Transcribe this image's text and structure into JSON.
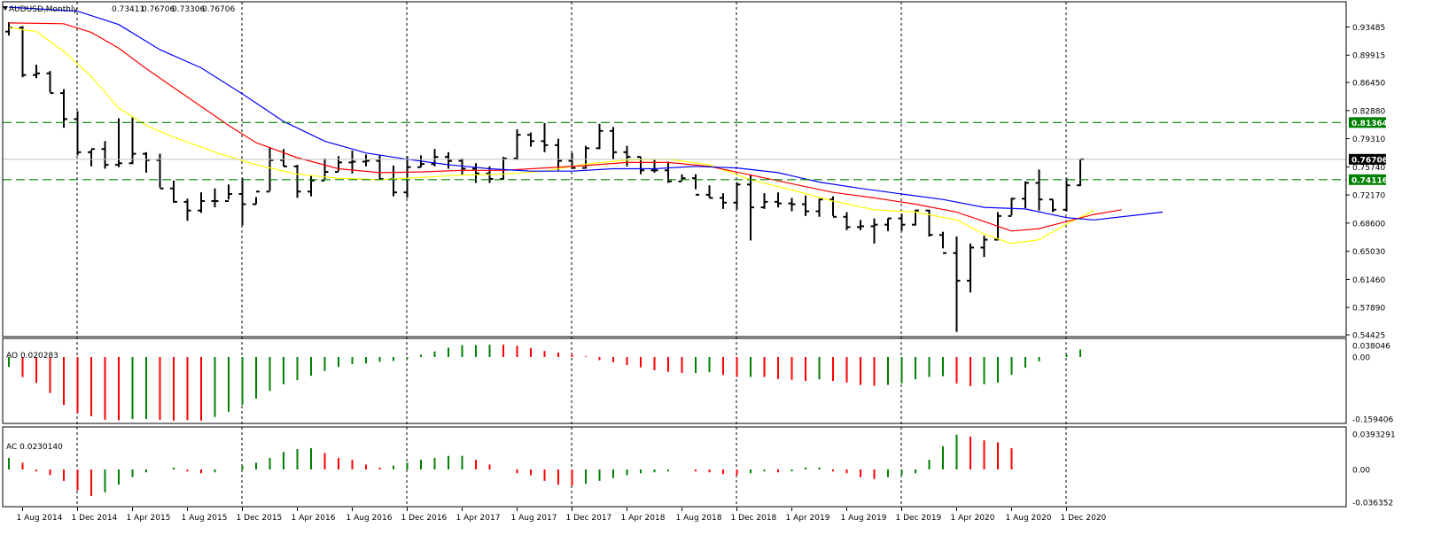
{
  "main_panel": {
    "title": "AUDUSD,Monthly",
    "ohlc": [
      "0.73411",
      "0.76706",
      "0.73306",
      "0.76706"
    ],
    "y_ticks": [
      "0.93485",
      "0.89915",
      "0.86450",
      "0.82880",
      "0.79310",
      "0.75740",
      "0.72170",
      "0.68600",
      "0.65030",
      "0.61460",
      "0.57890",
      "0.54425"
    ],
    "price_tag": "0.76706",
    "hline_tags": [
      "0.81364",
      "0.74116"
    ]
  },
  "ao_panel": {
    "label": "AO 0.020283",
    "ticks": [
      "0.038046",
      "0.00",
      "-0.159406"
    ]
  },
  "ac_panel": {
    "label": "AC 0.0230140",
    "ticks": [
      "0.0393291",
      "0.00",
      "-0.036352"
    ]
  },
  "x_labels": [
    "1 Aug 2014",
    "1 Dec 2014",
    "1 Apr 2015",
    "1 Aug 2015",
    "1 Dec 2015",
    "1 Apr 2016",
    "1 Aug 2016",
    "1 Dec 2016",
    "1 Apr 2017",
    "1 Aug 2017",
    "1 Dec 2017",
    "1 Apr 2018",
    "1 Aug 2018",
    "1 Dec 2018",
    "1 Apr 2019",
    "1 Aug 2019",
    "1 Dec 2019",
    "1 Apr 2020",
    "1 Aug 2020",
    "1 Dec 2020"
  ],
  "colors": {
    "bar": "#000000",
    "ma_yellow": "#ffff00",
    "ma_red": "#ff0000",
    "ma_blue": "#0000ff",
    "hline": "#008000",
    "ind_up": "#008000",
    "ind_down": "#ff0000",
    "grid": "#000000"
  },
  "chart_data": [
    {
      "type": "ohlc",
      "symbol": "AUDUSD",
      "timeframe": "Monthly",
      "ylim": [
        0.54425,
        0.95
      ],
      "horizontal_lines": [
        0.81364,
        0.74116
      ],
      "x_start": "2014-07",
      "bars": [
        [
          0.929,
          0.941,
          0.924,
          0.934
        ],
        [
          0.934,
          0.936,
          0.871,
          0.874
        ],
        [
          0.874,
          0.887,
          0.87,
          0.876
        ],
        [
          0.876,
          0.879,
          0.852,
          0.851
        ],
        [
          0.851,
          0.856,
          0.807,
          0.818
        ],
        [
          0.818,
          0.828,
          0.772,
          0.776
        ],
        [
          0.776,
          0.779,
          0.758,
          0.78
        ],
        [
          0.78,
          0.79,
          0.755,
          0.76
        ],
        [
          0.76,
          0.819,
          0.757,
          0.762
        ],
        [
          0.762,
          0.82,
          0.761,
          0.774
        ],
        [
          0.774,
          0.776,
          0.75,
          0.766
        ],
        [
          0.766,
          0.774,
          0.731,
          0.73
        ],
        [
          0.73,
          0.74,
          0.712,
          0.713
        ],
        [
          0.713,
          0.717,
          0.689,
          0.702
        ],
        [
          0.702,
          0.725,
          0.699,
          0.714
        ],
        [
          0.714,
          0.73,
          0.706,
          0.714
        ],
        [
          0.714,
          0.735,
          0.716,
          0.723
        ],
        [
          0.723,
          0.743,
          0.683,
          0.71
        ],
        [
          0.71,
          0.719,
          0.71,
          0.726
        ],
        [
          0.726,
          0.782,
          0.727,
          0.766
        ],
        [
          0.766,
          0.78,
          0.758,
          0.758
        ],
        [
          0.758,
          0.76,
          0.718,
          0.726
        ],
        [
          0.726,
          0.746,
          0.72,
          0.74
        ],
        [
          0.74,
          0.768,
          0.742,
          0.751
        ],
        [
          0.751,
          0.771,
          0.752,
          0.763
        ],
        [
          0.763,
          0.778,
          0.749,
          0.764
        ],
        [
          0.764,
          0.773,
          0.758,
          0.765
        ],
        [
          0.765,
          0.772,
          0.741,
          0.742
        ],
        [
          0.742,
          0.759,
          0.72,
          0.725
        ],
        [
          0.725,
          0.771,
          0.718,
          0.757
        ],
        [
          0.757,
          0.772,
          0.757,
          0.761
        ],
        [
          0.761,
          0.78,
          0.758,
          0.77
        ],
        [
          0.77,
          0.776,
          0.755,
          0.765
        ],
        [
          0.765,
          0.768,
          0.747,
          0.755
        ],
        [
          0.755,
          0.762,
          0.737,
          0.749
        ],
        [
          0.749,
          0.758,
          0.737,
          0.742
        ],
        [
          0.742,
          0.77,
          0.741,
          0.768
        ],
        [
          0.768,
          0.805,
          0.766,
          0.798
        ],
        [
          0.798,
          0.801,
          0.783,
          0.79
        ],
        [
          0.79,
          0.813,
          0.776,
          0.785
        ],
        [
          0.785,
          0.793,
          0.753,
          0.765
        ],
        [
          0.765,
          0.775,
          0.759,
          0.756
        ],
        [
          0.756,
          0.784,
          0.755,
          0.781
        ],
        [
          0.781,
          0.812,
          0.78,
          0.803
        ],
        [
          0.803,
          0.808,
          0.767,
          0.776
        ],
        [
          0.776,
          0.784,
          0.758,
          0.77
        ],
        [
          0.77,
          0.77,
          0.748,
          0.753
        ],
        [
          0.753,
          0.767,
          0.75,
          0.753
        ],
        [
          0.753,
          0.764,
          0.737,
          0.739
        ],
        [
          0.739,
          0.748,
          0.74,
          0.743
        ],
        [
          0.743,
          0.748,
          0.729,
          0.722
        ],
        [
          0.722,
          0.734,
          0.718,
          0.718
        ],
        [
          0.718,
          0.724,
          0.704,
          0.712
        ],
        [
          0.712,
          0.738,
          0.703,
          0.735
        ],
        [
          0.735,
          0.747,
          0.664,
          0.706
        ],
        [
          0.706,
          0.724,
          0.704,
          0.713
        ],
        [
          0.713,
          0.725,
          0.706,
          0.711
        ],
        [
          0.711,
          0.718,
          0.701,
          0.71
        ],
        [
          0.71,
          0.721,
          0.695,
          0.701
        ],
        [
          0.701,
          0.717,
          0.694,
          0.716
        ],
        [
          0.716,
          0.72,
          0.695,
          0.694
        ],
        [
          0.694,
          0.7,
          0.677,
          0.681
        ],
        [
          0.681,
          0.69,
          0.677,
          0.682
        ],
        [
          0.682,
          0.692,
          0.66,
          0.684
        ],
        [
          0.684,
          0.692,
          0.676,
          0.692
        ],
        [
          0.692,
          0.698,
          0.676,
          0.684
        ],
        [
          0.684,
          0.703,
          0.683,
          0.702
        ],
        [
          0.702,
          0.703,
          0.669,
          0.671
        ],
        [
          0.671,
          0.675,
          0.654,
          0.648
        ],
        [
          0.648,
          0.669,
          0.548,
          0.613
        ],
        [
          0.613,
          0.66,
          0.598,
          0.655
        ],
        [
          0.655,
          0.67,
          0.643,
          0.665
        ],
        [
          0.665,
          0.7,
          0.664,
          0.695
        ],
        [
          0.695,
          0.718,
          0.696,
          0.717
        ],
        [
          0.717,
          0.739,
          0.705,
          0.737
        ],
        [
          0.737,
          0.754,
          0.702,
          0.716
        ],
        [
          0.716,
          0.716,
          0.7,
          0.703
        ],
        [
          0.703,
          0.743,
          0.701,
          0.734
        ],
        [
          0.734,
          0.767,
          0.733,
          0.767
        ]
      ],
      "ma_yellow": [
        [
          0,
          0.934
        ],
        [
          2,
          0.929
        ],
        [
          4,
          0.904
        ],
        [
          6,
          0.872
        ],
        [
          8,
          0.832
        ],
        [
          10,
          0.81
        ],
        [
          12,
          0.795
        ],
        [
          15,
          0.776
        ],
        [
          18,
          0.76
        ],
        [
          21,
          0.748
        ],
        [
          24,
          0.743
        ],
        [
          27,
          0.741
        ],
        [
          30,
          0.744
        ],
        [
          33,
          0.747
        ],
        [
          36,
          0.748
        ],
        [
          39,
          0.752
        ],
        [
          42,
          0.761
        ],
        [
          45,
          0.766
        ],
        [
          48,
          0.767
        ],
        [
          51,
          0.76
        ],
        [
          54,
          0.741
        ],
        [
          57,
          0.728
        ],
        [
          60,
          0.714
        ],
        [
          63,
          0.703
        ],
        [
          66,
          0.7
        ],
        [
          69,
          0.69
        ],
        [
          71,
          0.672
        ],
        [
          73,
          0.66
        ],
        [
          75,
          0.665
        ],
        [
          77,
          0.685
        ],
        [
          79,
          0.702
        ]
      ],
      "ma_red": [
        [
          0,
          0.94
        ],
        [
          4,
          0.939
        ],
        [
          6,
          0.928
        ],
        [
          8,
          0.908
        ],
        [
          10,
          0.882
        ],
        [
          12,
          0.858
        ],
        [
          14,
          0.834
        ],
        [
          16,
          0.81
        ],
        [
          18,
          0.788
        ],
        [
          21,
          0.769
        ],
        [
          24,
          0.755
        ],
        [
          27,
          0.75
        ],
        [
          30,
          0.751
        ],
        [
          33,
          0.753
        ],
        [
          36,
          0.753
        ],
        [
          39,
          0.756
        ],
        [
          42,
          0.759
        ],
        [
          45,
          0.763
        ],
        [
          48,
          0.763
        ],
        [
          51,
          0.758
        ],
        [
          54,
          0.747
        ],
        [
          57,
          0.736
        ],
        [
          60,
          0.725
        ],
        [
          63,
          0.718
        ],
        [
          66,
          0.71
        ],
        [
          69,
          0.7
        ],
        [
          71,
          0.688
        ],
        [
          73,
          0.676
        ],
        [
          75,
          0.679
        ],
        [
          77,
          0.688
        ],
        [
          79,
          0.697
        ],
        [
          81,
          0.703
        ]
      ],
      "ma_blue": [
        [
          0,
          0.96
        ],
        [
          5,
          0.955
        ],
        [
          8,
          0.938
        ],
        [
          11,
          0.906
        ],
        [
          14,
          0.883
        ],
        [
          17,
          0.85
        ],
        [
          20,
          0.815
        ],
        [
          23,
          0.79
        ],
        [
          26,
          0.775
        ],
        [
          29,
          0.767
        ],
        [
          32,
          0.76
        ],
        [
          35,
          0.755
        ],
        [
          38,
          0.752
        ],
        [
          41,
          0.752
        ],
        [
          44,
          0.755
        ],
        [
          47,
          0.755
        ],
        [
          50,
          0.758
        ],
        [
          53,
          0.756
        ],
        [
          56,
          0.75
        ],
        [
          59,
          0.738
        ],
        [
          62,
          0.73
        ],
        [
          65,
          0.723
        ],
        [
          68,
          0.716
        ],
        [
          71,
          0.706
        ],
        [
          74,
          0.704
        ],
        [
          77,
          0.693
        ],
        [
          79,
          0.69
        ],
        [
          82,
          0.696
        ],
        [
          84,
          0.7
        ]
      ]
    },
    {
      "type": "histogram",
      "name": "AO",
      "ylim": [
        -0.159406,
        0.038046
      ],
      "values": [
        -0.025,
        -0.05,
        -0.065,
        -0.09,
        -0.12,
        -0.14,
        -0.148,
        -0.157,
        -0.158,
        -0.155,
        -0.155,
        -0.157,
        -0.159,
        -0.158,
        -0.159,
        -0.15,
        -0.137,
        -0.12,
        -0.104,
        -0.085,
        -0.068,
        -0.058,
        -0.047,
        -0.035,
        -0.025,
        -0.018,
        -0.016,
        -0.012,
        -0.01,
        -0.005,
        0.006,
        0.015,
        0.025,
        0.032,
        0.032,
        0.033,
        0.033,
        0.03,
        0.024,
        0.016,
        0.012,
        0.007,
        0.002,
        -0.008,
        -0.013,
        -0.02,
        -0.026,
        -0.033,
        -0.037,
        -0.04,
        -0.04,
        -0.038,
        -0.045,
        -0.05,
        -0.05,
        -0.05,
        -0.055,
        -0.057,
        -0.06,
        -0.056,
        -0.06,
        -0.064,
        -0.07,
        -0.072,
        -0.07,
        -0.066,
        -0.056,
        -0.05,
        -0.048,
        -0.066,
        -0.073,
        -0.068,
        -0.064,
        -0.045,
        -0.027,
        -0.011,
        0.0,
        0.007,
        0.02
      ],
      "up_flags": [
        1,
        0,
        0,
        0,
        0,
        0,
        0,
        0,
        0,
        1,
        1,
        0,
        0,
        0,
        0,
        1,
        1,
        1,
        1,
        1,
        1,
        1,
        1,
        1,
        1,
        1,
        1,
        1,
        1,
        1,
        1,
        1,
        1,
        1,
        1,
        1,
        0,
        0,
        0,
        0,
        0,
        0,
        0,
        0,
        0,
        0,
        0,
        0,
        0,
        0,
        1,
        1,
        0,
        0,
        1,
        0,
        0,
        0,
        0,
        1,
        0,
        0,
        0,
        0,
        1,
        1,
        1,
        1,
        1,
        0,
        0,
        1,
        1,
        1,
        1,
        1,
        1,
        1,
        1
      ]
    },
    {
      "type": "histogram",
      "name": "AC",
      "ylim": [
        -0.036352,
        0.0393291
      ],
      "values": [
        0.012,
        0.007,
        -0.002,
        -0.006,
        -0.012,
        -0.022,
        -0.028,
        -0.024,
        -0.016,
        -0.008,
        -0.003,
        0.0,
        0.002,
        -0.002,
        -0.004,
        -0.003,
        0.0,
        0.004,
        0.007,
        0.012,
        0.018,
        0.021,
        0.022,
        0.017,
        0.012,
        0.01,
        0.005,
        0.002,
        0.004,
        0.007,
        0.01,
        0.012,
        0.014,
        0.014,
        0.01,
        0.005,
        0.0,
        -0.004,
        -0.006,
        -0.012,
        -0.016,
        -0.017,
        -0.015,
        -0.012,
        -0.009,
        -0.006,
        -0.004,
        -0.003,
        -0.002,
        0.0,
        -0.002,
        -0.003,
        -0.005,
        -0.006,
        -0.004,
        -0.002,
        -0.003,
        -0.002,
        0.002,
        0.002,
        -0.002,
        -0.004,
        -0.008,
        -0.01,
        -0.008,
        -0.006,
        -0.004,
        0.01,
        0.024,
        0.036,
        0.034,
        0.03,
        0.028,
        0.022
      ],
      "up_flags": [
        1,
        0,
        0,
        0,
        0,
        0,
        0,
        1,
        1,
        1,
        1,
        1,
        1,
        0,
        0,
        1,
        1,
        1,
        1,
        1,
        1,
        1,
        1,
        0,
        0,
        0,
        0,
        0,
        1,
        1,
        1,
        1,
        1,
        1,
        0,
        0,
        0,
        0,
        0,
        0,
        0,
        0,
        1,
        1,
        1,
        1,
        1,
        1,
        1,
        1,
        0,
        0,
        0,
        0,
        1,
        1,
        0,
        1,
        1,
        1,
        0,
        0,
        0,
        0,
        1,
        1,
        1,
        1,
        1,
        1,
        0,
        0,
        0,
        0
      ]
    }
  ]
}
